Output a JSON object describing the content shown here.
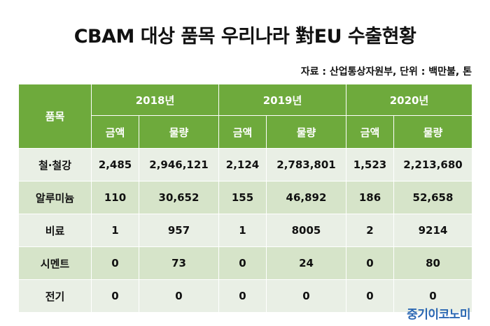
{
  "title": "CBAM 대상 품목 우리나라 對EU 수출현황",
  "source": "자료 : 산업통상자원부, 단위 : 백만불, 톤",
  "table": {
    "item_header": "품목",
    "years": [
      "2018년",
      "2019년",
      "2020년"
    ],
    "sub_headers": [
      "금액",
      "물량"
    ],
    "rows": [
      {
        "label": "철·철강",
        "values": [
          "2,485",
          "2,946,121",
          "2,124",
          "2,783,801",
          "1,523",
          "2,213,680"
        ]
      },
      {
        "label": "알루미늄",
        "values": [
          "110",
          "30,652",
          "155",
          "46,892",
          "186",
          "52,658"
        ]
      },
      {
        "label": "비료",
        "values": [
          "1",
          "957",
          "1",
          "8005",
          "2",
          "9214"
        ]
      },
      {
        "label": "시멘트",
        "values": [
          "0",
          "73",
          "0",
          "24",
          "0",
          "80"
        ]
      },
      {
        "label": "전기",
        "values": [
          "0",
          "0",
          "0",
          "0",
          "0",
          "0"
        ]
      }
    ]
  },
  "logo": "중기이코노미",
  "colors": {
    "header_green": "#6eaa3c",
    "row_light": "#e9efe5",
    "row_dark": "#d6e4c9",
    "logo_blue": "#2b67b3"
  }
}
